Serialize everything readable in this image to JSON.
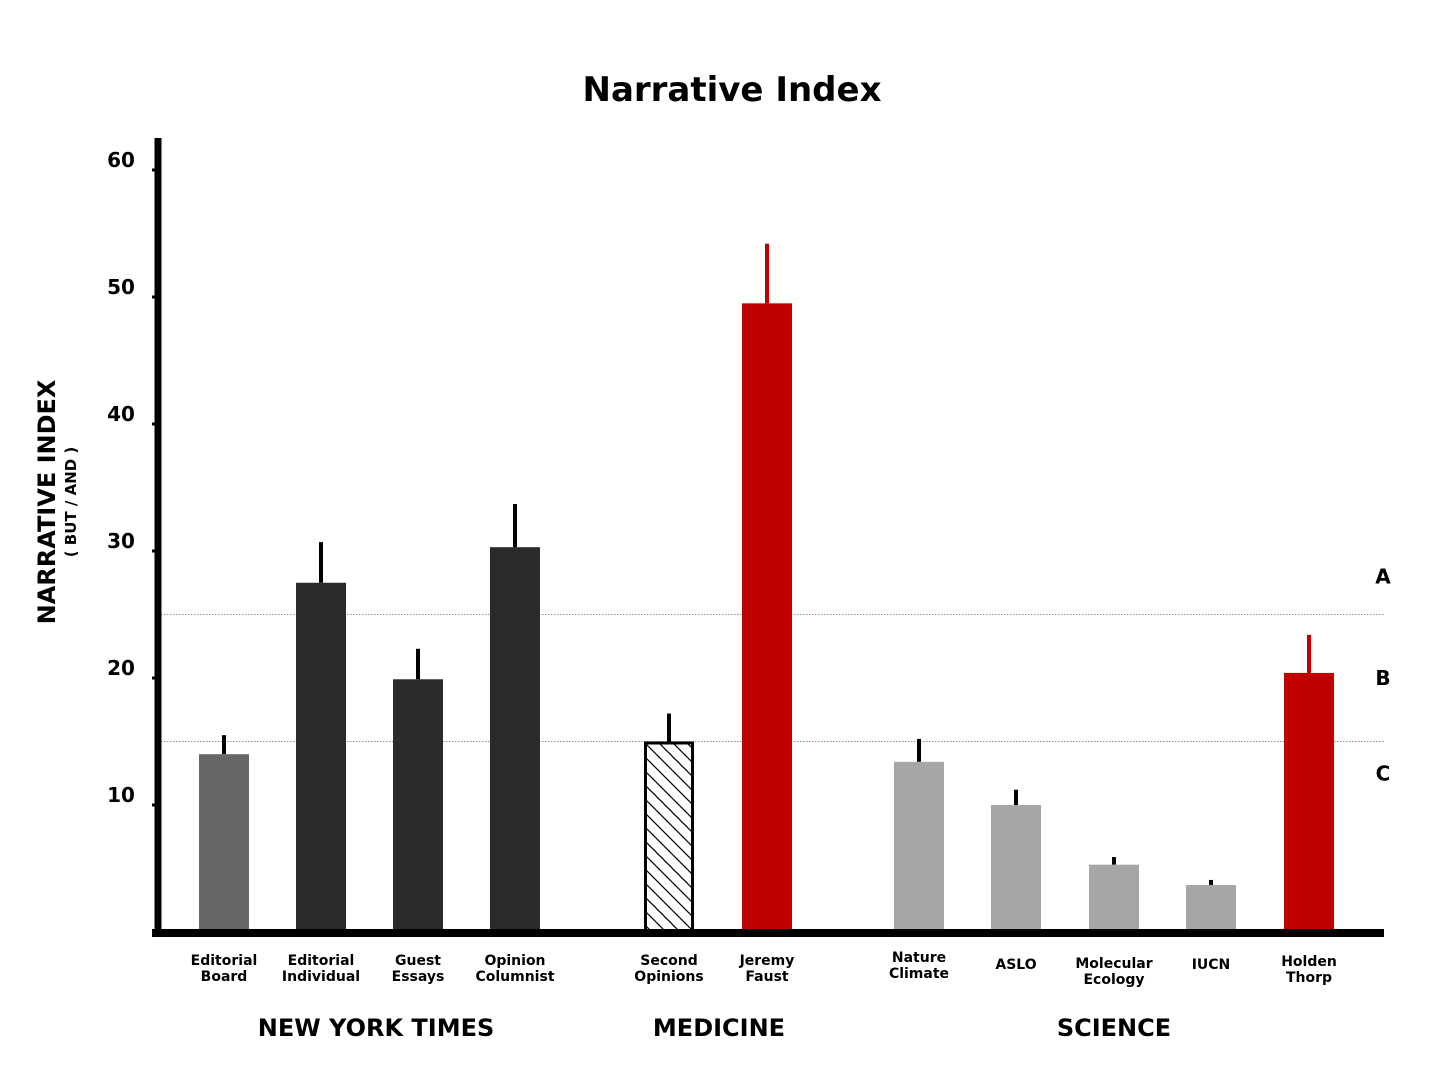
{
  "chart_data": {
    "type": "bar",
    "title": "Narrative Index",
    "ylabel": "NARRATIVE INDEX",
    "ylabel_sub": "( BUT / AND )",
    "ylim": [
      0,
      62
    ],
    "yticks": [
      10,
      20,
      30,
      40,
      50,
      60
    ],
    "grid": false,
    "categories": [
      {
        "label": [
          "Editorial",
          "Board"
        ],
        "group": "NEW YORK TIMES",
        "value": 14.0,
        "error": 1.5,
        "color": "#666666",
        "pattern": "solid"
      },
      {
        "label": [
          "Editorial",
          "Individual"
        ],
        "group": "NEW YORK TIMES",
        "value": 27.5,
        "error": 3.2,
        "color": "#2b2b2b",
        "pattern": "solid"
      },
      {
        "label": [
          "Guest",
          "Essays"
        ],
        "group": "NEW YORK TIMES",
        "value": 19.9,
        "error": 2.4,
        "color": "#2b2b2b",
        "pattern": "solid"
      },
      {
        "label": [
          "Opinion",
          "Columnist"
        ],
        "group": "NEW YORK TIMES",
        "value": 30.3,
        "error": 3.4,
        "color": "#2b2b2b",
        "pattern": "solid"
      },
      {
        "label": [
          "Second",
          "Opinions"
        ],
        "group": "MEDICINE",
        "value": 15.0,
        "error": 2.2,
        "color": "#ffffff",
        "pattern": "hatched"
      },
      {
        "label": [
          "Jeremy",
          "Faust"
        ],
        "group": "MEDICINE",
        "value": 49.5,
        "error": 4.7,
        "color": "#c00000",
        "pattern": "solid"
      },
      {
        "label": [
          "Nature",
          "Climate"
        ],
        "group": "SCIENCE",
        "value": 13.4,
        "error": 1.8,
        "color": "#a6a6a6",
        "pattern": "solid"
      },
      {
        "label": [
          "ASLO"
        ],
        "group": "SCIENCE",
        "value": 10.0,
        "error": 1.2,
        "color": "#a6a6a6",
        "pattern": "solid"
      },
      {
        "label": [
          "Molecular",
          "Ecology"
        ],
        "group": "SCIENCE",
        "value": 5.3,
        "error": 0.6,
        "color": "#a6a6a6",
        "pattern": "solid"
      },
      {
        "label": [
          "IUCN"
        ],
        "group": "SCIENCE",
        "value": 3.7,
        "error": 0.4,
        "color": "#a6a6a6",
        "pattern": "solid"
      },
      {
        "label": [
          "Holden",
          "Thorp"
        ],
        "group": "SCIENCE",
        "value": 20.4,
        "error": 3.0,
        "color": "#c00000",
        "pattern": "solid"
      }
    ],
    "groups": [
      "NEW YORK TIMES",
      "MEDICINE",
      "SCIENCE"
    ],
    "reference_lines": [
      25,
      15
    ],
    "reference_zones": [
      {
        "label": "A",
        "value": 28.0
      },
      {
        "label": "B",
        "value": 20.0
      },
      {
        "label": "C",
        "value": 12.5
      }
    ]
  }
}
